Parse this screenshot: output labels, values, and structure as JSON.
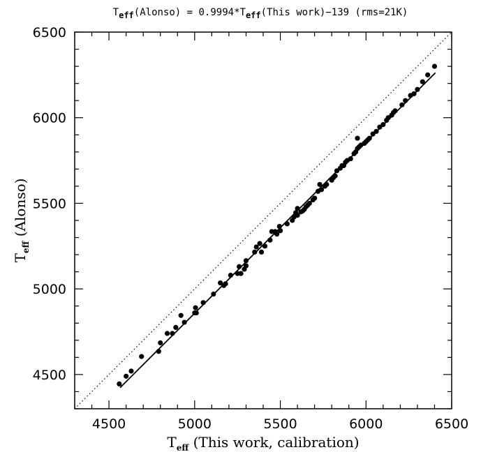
{
  "chart_data": {
    "type": "scatter",
    "title": {
      "pre": "T",
      "sub1": "eff",
      "mid": "(Alonso) = 0.9994*T",
      "sub2": "eff",
      "post": "(This work)−139 (rms=21K)"
    },
    "xlabel": {
      "main": "T",
      "sub": "eff",
      "rest": " (This work, calibration)"
    },
    "ylabel": {
      "main": "T",
      "sub": "eff",
      "rest": " (Alonso)"
    },
    "xlim": [
      4300,
      6500
    ],
    "ylim": [
      4300,
      6500
    ],
    "xticks": [
      4500,
      5000,
      5500,
      6000,
      6500
    ],
    "yticks": [
      4500,
      5000,
      5500,
      6000,
      6500
    ],
    "x_tick_labels": [
      "4500",
      "5000",
      "5500",
      "6000",
      "6500"
    ],
    "y_tick_labels": [
      "4500",
      "5000",
      "5500",
      "6000",
      "6500"
    ],
    "fit": {
      "slope": 0.9994,
      "intercept": -139,
      "x_range": [
        4565,
        6405
      ]
    },
    "one_to_one_line": true,
    "points": [
      [
        4560,
        4445
      ],
      [
        4600,
        4490
      ],
      [
        4630,
        4520
      ],
      [
        4690,
        4605
      ],
      [
        4790,
        4635
      ],
      [
        4800,
        4685
      ],
      [
        4840,
        4740
      ],
      [
        4870,
        4740
      ],
      [
        4890,
        4775
      ],
      [
        4920,
        4845
      ],
      [
        4940,
        4805
      ],
      [
        5000,
        4860
      ],
      [
        5005,
        4890
      ],
      [
        5010,
        4860
      ],
      [
        5050,
        4920
      ],
      [
        5110,
        4970
      ],
      [
        5150,
        5035
      ],
      [
        5170,
        5020
      ],
      [
        5180,
        5030
      ],
      [
        5210,
        5080
      ],
      [
        5250,
        5090
      ],
      [
        5260,
        5130
      ],
      [
        5270,
        5090
      ],
      [
        5290,
        5115
      ],
      [
        5300,
        5135
      ],
      [
        5300,
        5165
      ],
      [
        5350,
        5215
      ],
      [
        5360,
        5245
      ],
      [
        5380,
        5265
      ],
      [
        5390,
        5215
      ],
      [
        5410,
        5250
      ],
      [
        5440,
        5285
      ],
      [
        5450,
        5335
      ],
      [
        5470,
        5335
      ],
      [
        5480,
        5320
      ],
      [
        5495,
        5365
      ],
      [
        5500,
        5340
      ],
      [
        5540,
        5380
      ],
      [
        5570,
        5400
      ],
      [
        5580,
        5420
      ],
      [
        5590,
        5445
      ],
      [
        5600,
        5430
      ],
      [
        5600,
        5470
      ],
      [
        5620,
        5450
      ],
      [
        5630,
        5455
      ],
      [
        5640,
        5465
      ],
      [
        5650,
        5480
      ],
      [
        5660,
        5490
      ],
      [
        5670,
        5500
      ],
      [
        5690,
        5520
      ],
      [
        5700,
        5530
      ],
      [
        5720,
        5570
      ],
      [
        5730,
        5610
      ],
      [
        5740,
        5580
      ],
      [
        5760,
        5600
      ],
      [
        5770,
        5610
      ],
      [
        5800,
        5635
      ],
      [
        5810,
        5650
      ],
      [
        5820,
        5660
      ],
      [
        5830,
        5690
      ],
      [
        5850,
        5705
      ],
      [
        5860,
        5720
      ],
      [
        5870,
        5720
      ],
      [
        5880,
        5740
      ],
      [
        5890,
        5750
      ],
      [
        5910,
        5760
      ],
      [
        5930,
        5790
      ],
      [
        5940,
        5800
      ],
      [
        5950,
        5820
      ],
      [
        5950,
        5880
      ],
      [
        5960,
        5830
      ],
      [
        5970,
        5840
      ],
      [
        5990,
        5850
      ],
      [
        6000,
        5860
      ],
      [
        6010,
        5870
      ],
      [
        6020,
        5880
      ],
      [
        6040,
        5905
      ],
      [
        6060,
        5920
      ],
      [
        6080,
        5945
      ],
      [
        6100,
        5960
      ],
      [
        6120,
        5985
      ],
      [
        6130,
        6000
      ],
      [
        6150,
        6015
      ],
      [
        6160,
        6030
      ],
      [
        6170,
        6040
      ],
      [
        6210,
        6075
      ],
      [
        6230,
        6100
      ],
      [
        6260,
        6130
      ],
      [
        6280,
        6140
      ],
      [
        6300,
        6165
      ],
      [
        6330,
        6210
      ],
      [
        6360,
        6250
      ],
      [
        6400,
        6300
      ]
    ]
  }
}
